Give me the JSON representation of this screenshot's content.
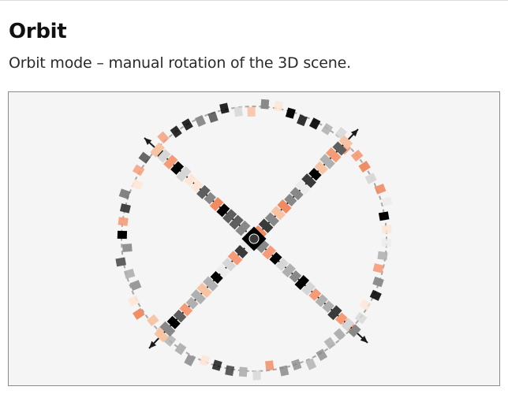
{
  "header": {
    "title": "Orbit",
    "subtitle": "Orbit mode – manual rotation of the 3D scene."
  },
  "scene": {
    "background": "#f5f5f5",
    "border_color": "#8a8a8a",
    "ring_dash_color": "#a8a8a8",
    "axis_color": "#1a1a1a",
    "center_color": "#000000",
    "palette": [
      "#000000",
      "#3a3a3a",
      "#5e5e5e",
      "#888888",
      "#b0b0b0",
      "#d6d6d6",
      "#ececec",
      "#fde6d7",
      "#f7c3a3",
      "#f59b78",
      "#ef8a62"
    ]
  }
}
